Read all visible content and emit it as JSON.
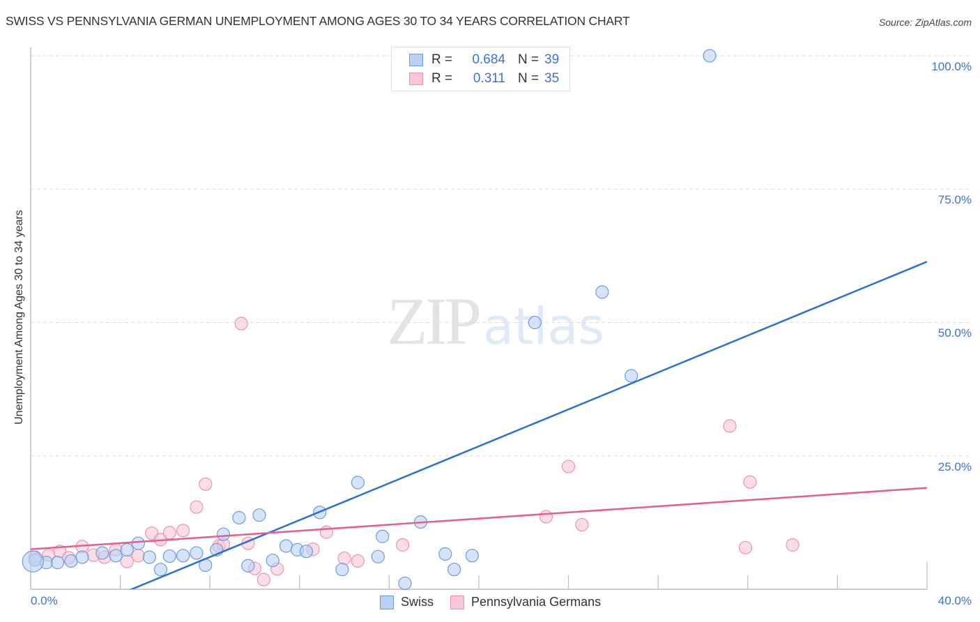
{
  "header": {
    "title": "SWISS VS PENNSYLVANIA GERMAN UNEMPLOYMENT AMONG AGES 30 TO 34 YEARS CORRELATION CHART",
    "source": "Source: ZipAtlas.com"
  },
  "watermark": {
    "zip": "ZIP",
    "atlas": "atlas"
  },
  "legend_top": {
    "rows": [
      {
        "series": "Swiss",
        "r_label": "R =",
        "r_value": "0.684",
        "n_label": "N =",
        "n_value": "39"
      },
      {
        "series": "Pennsylvania Germans",
        "r_label": "R =",
        "r_value": "0.311",
        "n_label": "N =",
        "n_value": "35"
      }
    ]
  },
  "legend_bottom": {
    "items": [
      {
        "label": "Swiss"
      },
      {
        "label": "Pennsylvania Germans"
      }
    ]
  },
  "axes": {
    "ylabel": "Unemployment Among Ages 30 to 34 years",
    "y_ticks": [
      "100.0%",
      "75.0%",
      "50.0%",
      "25.0%"
    ],
    "x_ticks": [
      "0.0%",
      "40.0%"
    ]
  },
  "colors": {
    "swiss_fill": "#b9d2f4",
    "swiss_stroke": "#6b9be0",
    "swiss_line": "#2a6fd6",
    "pa_fill": "#f9c6d5",
    "pa_stroke": "#eb93ad",
    "pa_line": "#e35f8c",
    "tick_label": "#3b73d1"
  },
  "chart_data": {
    "type": "scatter",
    "title": "SWISS VS PENNSYLVANIA GERMAN UNEMPLOYMENT AMONG AGES 30 TO 34 YEARS CORRELATION CHART",
    "xlabel": "",
    "ylabel": "Unemployment Among Ages 30 to 34 years",
    "xlim": [
      0,
      40
    ],
    "ylim": [
      0,
      100
    ],
    "x_ticks": [
      0,
      40
    ],
    "y_ticks": [
      25,
      50,
      75,
      100
    ],
    "grid": "horizontal dashed",
    "legend_position": "top-center and bottom",
    "series": [
      {
        "name": "Swiss",
        "R": 0.684,
        "N": 39,
        "trendline": {
          "x": [
            0,
            40
          ],
          "y": [
            -7.8,
            61.4
          ]
        },
        "points": [
          [
            0.2,
            5.5
          ],
          [
            0.7,
            5.0
          ],
          [
            1.2,
            5.0
          ],
          [
            1.8,
            5.3
          ],
          [
            2.3,
            6.0
          ],
          [
            3.2,
            6.8
          ],
          [
            3.8,
            6.3
          ],
          [
            4.3,
            7.4
          ],
          [
            4.8,
            8.6
          ],
          [
            5.3,
            6.0
          ],
          [
            5.8,
            3.7
          ],
          [
            6.2,
            6.2
          ],
          [
            6.8,
            6.3
          ],
          [
            7.4,
            6.8
          ],
          [
            7.8,
            4.5
          ],
          [
            8.3,
            7.4
          ],
          [
            8.6,
            10.3
          ],
          [
            9.3,
            13.4
          ],
          [
            9.7,
            4.4
          ],
          [
            10.2,
            13.9
          ],
          [
            10.8,
            5.4
          ],
          [
            11.4,
            8.1
          ],
          [
            11.9,
            7.4
          ],
          [
            12.3,
            7.1
          ],
          [
            12.9,
            14.4
          ],
          [
            13.9,
            3.7
          ],
          [
            14.6,
            20.0
          ],
          [
            15.7,
            9.9
          ],
          [
            15.5,
            6.1
          ],
          [
            16.7,
            1.1
          ],
          [
            17.4,
            12.6
          ],
          [
            18.5,
            6.6
          ],
          [
            18.9,
            3.7
          ],
          [
            19.7,
            6.3
          ],
          [
            22.5,
            50.0
          ],
          [
            25.5,
            55.7
          ],
          [
            26.8,
            40.0
          ],
          [
            30.3,
            100.0
          ],
          [
            0.1,
            5.2
          ]
        ]
      },
      {
        "name": "Pennsylvania Germans",
        "R": 0.311,
        "N": 35,
        "trendline": {
          "x": [
            0,
            40
          ],
          "y": [
            7.5,
            19.0
          ]
        },
        "points": [
          [
            0.2,
            6.0
          ],
          [
            0.8,
            6.4
          ],
          [
            1.3,
            7.1
          ],
          [
            1.7,
            5.9
          ],
          [
            2.3,
            8.0
          ],
          [
            2.8,
            6.4
          ],
          [
            3.3,
            6.0
          ],
          [
            3.8,
            7.4
          ],
          [
            4.3,
            5.2
          ],
          [
            4.8,
            6.3
          ],
          [
            5.4,
            10.5
          ],
          [
            5.8,
            9.3
          ],
          [
            6.2,
            10.6
          ],
          [
            6.8,
            11.0
          ],
          [
            7.4,
            15.4
          ],
          [
            7.8,
            19.7
          ],
          [
            8.4,
            8.1
          ],
          [
            8.6,
            8.4
          ],
          [
            9.4,
            49.8
          ],
          [
            9.7,
            8.6
          ],
          [
            10.0,
            3.9
          ],
          [
            10.4,
            1.8
          ],
          [
            11.0,
            3.8
          ],
          [
            12.6,
            7.5
          ],
          [
            13.2,
            10.7
          ],
          [
            14.0,
            5.8
          ],
          [
            14.6,
            5.3
          ],
          [
            16.6,
            8.3
          ],
          [
            23.0,
            13.6
          ],
          [
            24.0,
            23.0
          ],
          [
            24.6,
            12.1
          ],
          [
            31.2,
            30.6
          ],
          [
            31.9,
            7.8
          ],
          [
            32.1,
            20.1
          ],
          [
            34.0,
            8.3
          ]
        ]
      }
    ]
  }
}
